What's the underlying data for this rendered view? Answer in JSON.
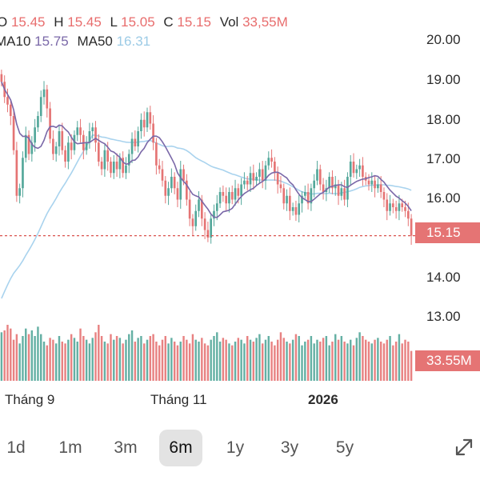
{
  "header": {
    "o_label": "O",
    "o_value": "15.45",
    "h_label": "H",
    "h_value": "15.45",
    "l_label": "L",
    "l_value": "15.05",
    "c_label": "C",
    "c_value": "15.15",
    "vol_label": "Vol",
    "vol_value": "33,55M",
    "ma10_label": "MA10",
    "ma10_value": "15.75",
    "ma50_label": "MA50",
    "ma50_value": "16.31"
  },
  "price_badge": "15.15",
  "volume_badge": "33.55M",
  "range_buttons": [
    {
      "label": "1d",
      "active": false
    },
    {
      "label": "1m",
      "active": false
    },
    {
      "label": "3m",
      "active": false
    },
    {
      "label": "6m",
      "active": true
    },
    {
      "label": "1y",
      "active": false
    },
    {
      "label": "3y",
      "active": false
    },
    {
      "label": "5y",
      "active": false
    }
  ],
  "icons": {
    "expand": "expand-icon"
  },
  "colors": {
    "up": "#53a79a",
    "down": "#e57474",
    "ma10": "#7a68a8",
    "ma50": "#a9d3ee",
    "last_price_line": "#d9534f"
  },
  "chart_data": {
    "type": "candlestick",
    "y_ticks": [
      "20.00",
      "19.00",
      "18.00",
      "17.00",
      "16.00",
      "14.00",
      "13.00"
    ],
    "ylim": [
      12.3,
      20.3
    ],
    "x_ticks": [
      {
        "label": "Tháng 9",
        "bold": false
      },
      {
        "label": "Tháng 11",
        "bold": false
      },
      {
        "label": "2026",
        "bold": true
      }
    ],
    "last_price": 15.15,
    "closes": [
      19.2,
      18.8,
      18.6,
      18.3,
      17.4,
      16.2,
      16.4,
      17.2,
      17.8,
      17.3,
      17.6,
      18.0,
      18.3,
      18.8,
      19.0,
      18.5,
      17.7,
      17.3,
      17.5,
      17.9,
      17.4,
      17.1,
      17.6,
      17.4,
      17.8,
      18.0,
      17.8,
      17.4,
      17.6,
      17.9,
      18.0,
      17.6,
      17.1,
      16.9,
      17.4,
      17.1,
      16.8,
      17.1,
      16.9,
      17.2,
      16.8,
      17.0,
      17.3,
      17.7,
      17.5,
      17.9,
      18.2,
      18.0,
      18.4,
      18.1,
      17.6,
      17.0,
      16.9,
      16.6,
      16.2,
      16.4,
      16.7,
      16.4,
      16.1,
      16.9,
      16.6,
      16.1,
      15.6,
      15.4,
      15.8,
      16.1,
      15.6,
      15.3,
      15.1,
      15.6,
      15.8,
      16.0,
      16.3,
      16.2,
      16.0,
      16.3,
      16.1,
      16.4,
      16.2,
      16.5,
      16.6,
      16.5,
      16.8,
      16.6,
      16.7,
      16.9,
      16.6,
      17.0,
      17.2,
      17.1,
      16.8,
      16.5,
      16.4,
      16.0,
      16.2,
      15.8,
      15.9,
      15.7,
      16.0,
      16.2,
      16.3,
      16.0,
      16.4,
      16.6,
      16.9,
      16.5,
      16.3,
      16.4,
      16.7,
      16.4,
      16.5,
      16.2,
      16.4,
      16.1,
      16.7,
      17.1,
      16.8,
      16.9,
      17.0,
      16.7,
      16.6,
      16.5,
      16.6,
      16.4,
      16.5,
      16.3,
      16.1,
      15.8,
      16.0,
      15.9,
      15.8,
      16.0,
      15.9,
      15.8,
      15.6,
      15.15
    ],
    "volumes": [
      26,
      27,
      30,
      28,
      22,
      25,
      20,
      24,
      28,
      25,
      27,
      24,
      29,
      25,
      21,
      19,
      23,
      22,
      20,
      24,
      21,
      20,
      22,
      25,
      23,
      21,
      28,
      24,
      22,
      20,
      23,
      26,
      30,
      24,
      21,
      20,
      25,
      22,
      24,
      23,
      20,
      22,
      25,
      27,
      21,
      23,
      24,
      20,
      22,
      24,
      25,
      21,
      19,
      22,
      24,
      20,
      23,
      21,
      19,
      21,
      24,
      22,
      20,
      25,
      22,
      21,
      23,
      20,
      19,
      22,
      24,
      26,
      21,
      23,
      22,
      20,
      19,
      21,
      23,
      22,
      20,
      24,
      22,
      21,
      23,
      25,
      20,
      22,
      24,
      21,
      19,
      22,
      26,
      23,
      21,
      20,
      22,
      25,
      24,
      19,
      21,
      22,
      24,
      20,
      22,
      21,
      23,
      24,
      19,
      21,
      25,
      22,
      24,
      21,
      20,
      22,
      19,
      23,
      26,
      24,
      22,
      21,
      20,
      22,
      23,
      21,
      20,
      22,
      24,
      19,
      21,
      25,
      20,
      22,
      21,
      16
    ],
    "volume_ylim": [
      0,
      60
    ],
    "ma10_visible_value": 15.75,
    "ma50_visible_value": 16.31
  }
}
